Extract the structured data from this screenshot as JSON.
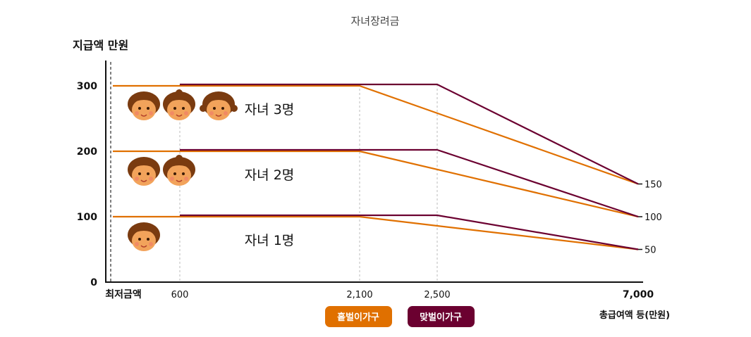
{
  "chart_data": {
    "type": "line",
    "title": "자녀장려금",
    "ylabel": "지급액 만원",
    "xlabel": "총급여액 등(만원)",
    "ylim": [
      0,
      330
    ],
    "y_ticks": [
      {
        "value": 0,
        "label": "0"
      },
      {
        "value": 100,
        "label": "100"
      },
      {
        "value": 200,
        "label": "200"
      },
      {
        "value": 300,
        "label": "300"
      }
    ],
    "right_ticks": [
      {
        "value": 150,
        "label": "150"
      },
      {
        "value": 100,
        "label": "100"
      },
      {
        "value": 50,
        "label": "50"
      }
    ],
    "x_ticks": [
      {
        "value": 0,
        "label": "최저금액",
        "bold": true
      },
      {
        "value": 600,
        "label": "600"
      },
      {
        "value": 2100,
        "label": "2,100"
      },
      {
        "value": 2500,
        "label": "2,500"
      },
      {
        "value": 7000,
        "label": "7,000",
        "bold": true
      }
    ],
    "groups": [
      {
        "label": "자녀 3명",
        "children": 3,
        "max": 300,
        "min": 150
      },
      {
        "label": "자녀 2명",
        "children": 2,
        "max": 200,
        "min": 100
      },
      {
        "label": "자녀 1명",
        "children": 1,
        "max": 100,
        "min": 50
      }
    ],
    "series": [
      {
        "name": "홑벌이가구",
        "color": "#e07000",
        "lines": [
          {
            "group": "자녀 3명",
            "points": [
              [
                0,
                300
              ],
              [
                2100,
                300
              ],
              [
                7000,
                150
              ]
            ]
          },
          {
            "group": "자녀 2명",
            "points": [
              [
                0,
                200
              ],
              [
                2100,
                200
              ],
              [
                7000,
                100
              ]
            ]
          },
          {
            "group": "자녀 1명",
            "points": [
              [
                0,
                100
              ],
              [
                2100,
                100
              ],
              [
                7000,
                50
              ]
            ]
          }
        ]
      },
      {
        "name": "맞벌이가구",
        "color": "#6b0030",
        "lines": [
          {
            "group": "자녀 3명",
            "points": [
              [
                600,
                300
              ],
              [
                2500,
                300
              ],
              [
                7000,
                150
              ]
            ]
          },
          {
            "group": "자녀 2명",
            "points": [
              [
                600,
                200
              ],
              [
                2500,
                200
              ],
              [
                7000,
                100
              ]
            ]
          },
          {
            "group": "자녀 1명",
            "points": [
              [
                600,
                100
              ],
              [
                2500,
                100
              ],
              [
                7000,
                50
              ]
            ]
          }
        ]
      }
    ],
    "reference_lines_x": [
      0,
      600,
      2100,
      2500
    ],
    "legend_position": "bottom-center"
  }
}
